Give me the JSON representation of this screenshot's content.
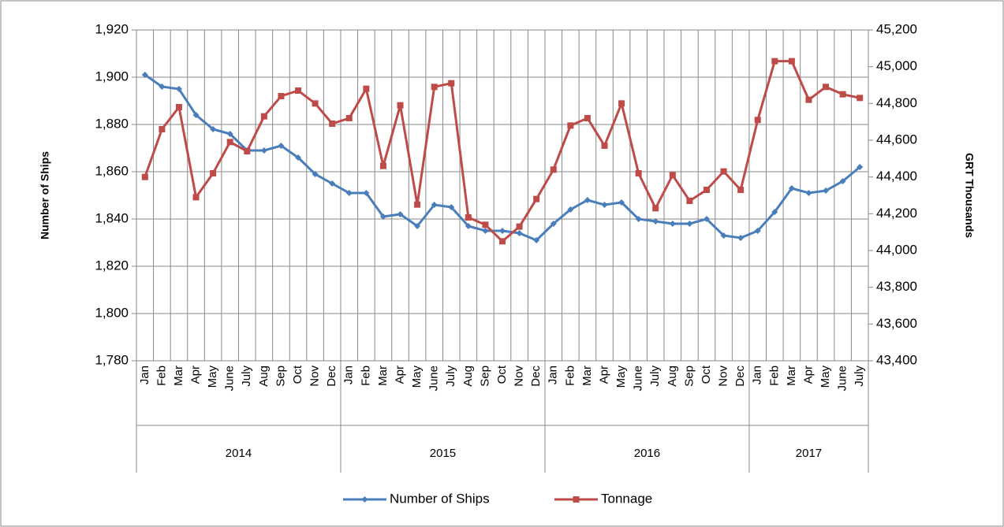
{
  "chart_data": {
    "type": "line",
    "categories": [
      "Jan",
      "Feb",
      "Mar",
      "Apr",
      "May",
      "June",
      "July",
      "Aug",
      "Sep",
      "Oct",
      "Nov",
      "Dec",
      "Jan",
      "Feb",
      "Mar",
      "Apr",
      "May",
      "June",
      "July",
      "Aug",
      "Sep",
      "Oct",
      "Nov",
      "Dec",
      "Jan",
      "Feb",
      "Mar",
      "Apr",
      "May",
      "June",
      "July",
      "Aug",
      "Sep",
      "Oct",
      "Nov",
      "Dec",
      "Jan",
      "Feb",
      "Mar",
      "Apr",
      "May",
      "June",
      "July"
    ],
    "years": [
      "2014",
      "2015",
      "2016",
      "2017"
    ],
    "ylabel": "Number of Ships",
    "y2label": "GRT Thousands",
    "ylim": [
      1780,
      1920
    ],
    "yticks": [
      {
        "value": 1780,
        "label": "1,780"
      },
      {
        "value": 1800,
        "label": "1,800"
      },
      {
        "value": 1820,
        "label": "1,820"
      },
      {
        "value": 1840,
        "label": "1,840"
      },
      {
        "value": 1860,
        "label": "1,860"
      },
      {
        "value": 1880,
        "label": "1,880"
      },
      {
        "value": 1900,
        "label": "1,900"
      },
      {
        "value": 1920,
        "label": "1,920"
      }
    ],
    "y2lim": [
      43400,
      45200
    ],
    "y2ticks": [
      {
        "value": 43400,
        "label": "43,400"
      },
      {
        "value": 43600,
        "label": "43,600"
      },
      {
        "value": 43800,
        "label": "43,800"
      },
      {
        "value": 44000,
        "label": "44,000"
      },
      {
        "value": 44200,
        "label": "44,200"
      },
      {
        "value": 44400,
        "label": "44,400"
      },
      {
        "value": 44600,
        "label": "44,600"
      },
      {
        "value": 44800,
        "label": "44,800"
      },
      {
        "value": 45000,
        "label": "45,000"
      },
      {
        "value": 45200,
        "label": "45,200"
      }
    ],
    "grid": true,
    "legend": "bottom",
    "series": [
      {
        "name": "Number of Ships",
        "color": "#4a7ebb",
        "marker": "diamond",
        "values": [
          1901,
          1896,
          1895,
          1884,
          1878,
          1876,
          1869,
          1869,
          1871,
          1866,
          1859,
          1855,
          1851,
          1851,
          1841,
          1842,
          1837,
          1846,
          1845,
          1837,
          1835,
          1835,
          1834,
          1831,
          1838,
          1844,
          1848,
          1846,
          1847,
          1840,
          1839,
          1838,
          1838,
          1840,
          1833,
          1832,
          1835,
          1843,
          1853,
          1851,
          1852,
          1856,
          1862
        ]
      },
      {
        "name": "Tonnage",
        "color": "#be4b48",
        "marker": "square",
        "axis": "y2",
        "values": [
          44400,
          44660,
          44780,
          44290,
          44420,
          44590,
          44540,
          44730,
          44840,
          44870,
          44800,
          44690,
          44720,
          44880,
          44460,
          44790,
          44250,
          44890,
          44910,
          44180,
          44140,
          44050,
          44130,
          44280,
          44440,
          44680,
          44720,
          44570,
          44800,
          44420,
          44230,
          44410,
          44270,
          44330,
          44430,
          44330,
          44710,
          45030,
          45030,
          44820,
          44890,
          44850,
          44830
        ]
      }
    ]
  }
}
